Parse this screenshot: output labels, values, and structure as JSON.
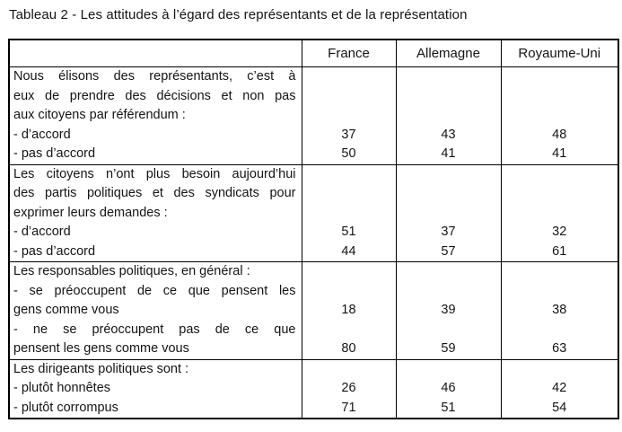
{
  "title": "Tableau 2 - Les attitudes à l’égard des représentants et de la représentation",
  "table": {
    "columns": [
      "",
      "France",
      "Allemagne",
      "Royaume-Uni"
    ],
    "blocks": [
      {
        "lines": [
          {
            "text": "Nous élisons des représentants, c’est à",
            "values": [
              "",
              "",
              ""
            ]
          },
          {
            "text": "eux de prendre des décisions et non pas",
            "values": [
              "",
              "",
              ""
            ]
          },
          {
            "text": "aux citoyens par référendum :",
            "values": [
              "",
              "",
              ""
            ]
          },
          {
            "text": "- d’accord",
            "values": [
              37,
              43,
              48
            ]
          },
          {
            "text": "- pas d’accord",
            "values": [
              50,
              41,
              41
            ]
          }
        ]
      },
      {
        "lines": [
          {
            "text": "Les citoyens n’ont plus besoin aujourd’hui",
            "values": [
              "",
              "",
              ""
            ]
          },
          {
            "text": "des partis politiques et des syndicats pour",
            "values": [
              "",
              "",
              ""
            ]
          },
          {
            "text": "exprimer leurs demandes :",
            "values": [
              "",
              "",
              ""
            ]
          },
          {
            "text": "- d’accord",
            "values": [
              51,
              37,
              32
            ]
          },
          {
            "text": "- pas d’accord",
            "values": [
              44,
              57,
              61
            ]
          }
        ]
      },
      {
        "lines": [
          {
            "text": "Les responsables politiques, en général :",
            "values": [
              "",
              "",
              ""
            ]
          },
          {
            "text": "- se préoccupent de ce que pensent les",
            "values": [
              "",
              "",
              ""
            ]
          },
          {
            "text": "gens comme vous",
            "values": [
              18,
              39,
              38
            ]
          },
          {
            "text": "- ne se préoccupent pas de ce que",
            "values": [
              "",
              "",
              ""
            ]
          },
          {
            "text": "pensent les gens comme vous",
            "values": [
              80,
              59,
              63
            ]
          }
        ]
      },
      {
        "lines": [
          {
            "text": "Les dirigeants politiques sont :",
            "values": [
              "",
              "",
              ""
            ]
          },
          {
            "text": "- plutôt honnêtes",
            "values": [
              26,
              46,
              42
            ]
          },
          {
            "text": "- plutôt corrompus",
            "values": [
              71,
              51,
              54
            ]
          }
        ]
      }
    ]
  }
}
